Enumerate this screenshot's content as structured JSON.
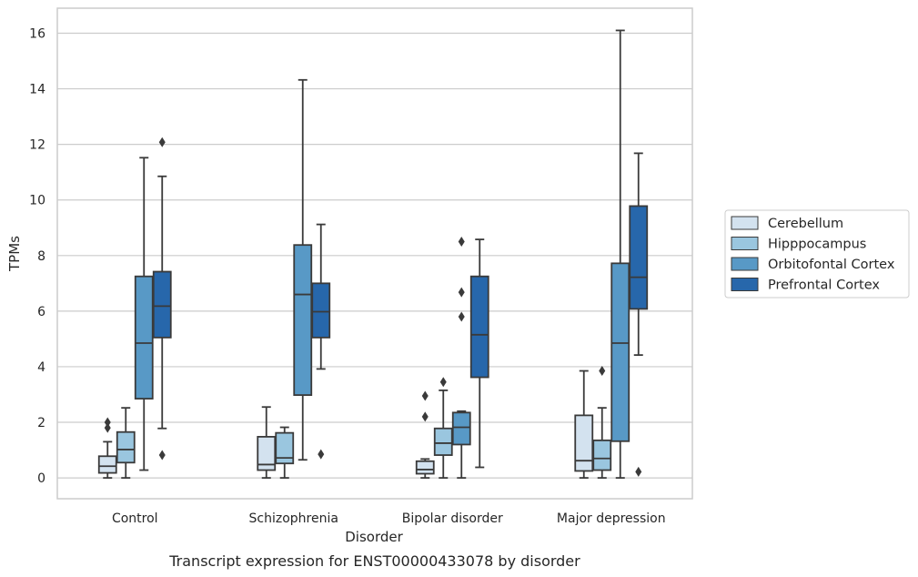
{
  "chart_data": {
    "type": "boxplot",
    "caption": "Transcript expression for ENST00000433078 by disorder",
    "xlabel": "Disorder",
    "ylabel": "TPMs",
    "ylim": [
      -0.75,
      16.9
    ],
    "yticks": [
      "0",
      "2",
      "4",
      "6",
      "8",
      "10",
      "12",
      "14",
      "16"
    ],
    "grid": "horizontal",
    "legend_placement": "right",
    "categories": [
      "Control",
      "Schizophrenia",
      "Bipolar disorder",
      "Major depression"
    ],
    "series": [
      {
        "name": "Cerebellum",
        "color": "#d3e2ef",
        "boxes": [
          {
            "min": 0.0,
            "q1": 0.18,
            "median": 0.42,
            "q3": 0.78,
            "max": 1.3,
            "outliers": [
              1.8,
              2.0
            ]
          },
          {
            "min": 0.0,
            "q1": 0.28,
            "median": 0.48,
            "q3": 1.48,
            "max": 2.55,
            "outliers": []
          },
          {
            "min": 0.0,
            "q1": 0.15,
            "median": 0.3,
            "q3": 0.6,
            "max": 0.68,
            "outliers": [
              2.2,
              2.95
            ]
          },
          {
            "min": 0.0,
            "q1": 0.25,
            "median": 0.62,
            "q3": 2.25,
            "max": 3.85,
            "outliers": []
          }
        ]
      },
      {
        "name": "Hipppocampus",
        "color": "#9ac6df",
        "boxes": [
          {
            "min": 0.0,
            "q1": 0.55,
            "median": 1.02,
            "q3": 1.65,
            "max": 2.52,
            "outliers": []
          },
          {
            "min": 0.0,
            "q1": 0.52,
            "median": 0.72,
            "q3": 1.62,
            "max": 1.82,
            "outliers": []
          },
          {
            "min": 0.0,
            "q1": 0.82,
            "median": 1.25,
            "q3": 1.78,
            "max": 3.15,
            "outliers": [
              3.45
            ]
          },
          {
            "min": 0.0,
            "q1": 0.28,
            "median": 0.7,
            "q3": 1.35,
            "max": 2.52,
            "outliers": [
              3.85
            ]
          }
        ]
      },
      {
        "name": "Orbitofontal Cortex",
        "color": "#5899c6",
        "boxes": [
          {
            "min": 0.28,
            "q1": 2.85,
            "median": 4.85,
            "q3": 7.25,
            "max": 11.52,
            "outliers": []
          },
          {
            "min": 0.65,
            "q1": 2.98,
            "median": 6.6,
            "q3": 8.38,
            "max": 14.32,
            "outliers": []
          },
          {
            "min": 0.0,
            "q1": 1.2,
            "median": 1.82,
            "q3": 2.35,
            "max": 2.4,
            "outliers": [
              5.8,
              6.68,
              8.5
            ]
          },
          {
            "min": 0.0,
            "q1": 1.32,
            "median": 4.85,
            "q3": 7.72,
            "max": 16.1,
            "outliers": []
          }
        ]
      },
      {
        "name": "Prefrontal Cortex",
        "color": "#2767ab",
        "boxes": [
          {
            "min": 1.78,
            "q1": 5.05,
            "median": 6.18,
            "q3": 7.42,
            "max": 10.85,
            "outliers": [
              0.82,
              12.08
            ]
          },
          {
            "min": 3.92,
            "q1": 5.05,
            "median": 5.98,
            "q3": 7.0,
            "max": 9.12,
            "outliers": [
              0.85
            ]
          },
          {
            "min": 0.38,
            "q1": 3.62,
            "median": 5.15,
            "q3": 7.25,
            "max": 8.58,
            "outliers": []
          },
          {
            "min": 4.42,
            "q1": 6.08,
            "median": 7.22,
            "q3": 9.78,
            "max": 11.68,
            "outliers": [
              0.22
            ]
          }
        ]
      }
    ]
  }
}
